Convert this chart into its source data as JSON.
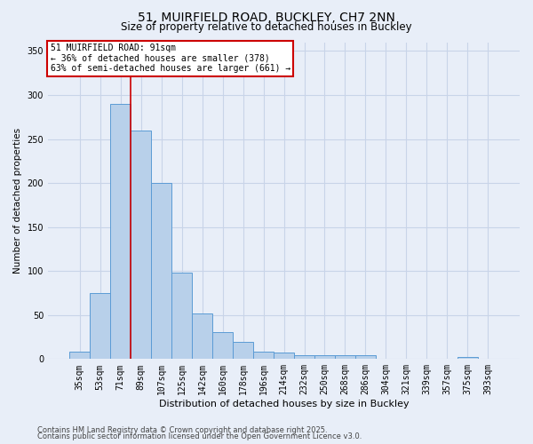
{
  "title1": "51, MUIRFIELD ROAD, BUCKLEY, CH7 2NN",
  "title2": "Size of property relative to detached houses in Buckley",
  "xlabel": "Distribution of detached houses by size in Buckley",
  "ylabel": "Number of detached properties",
  "categories": [
    "35sqm",
    "53sqm",
    "71sqm",
    "89sqm",
    "107sqm",
    "125sqm",
    "142sqm",
    "160sqm",
    "178sqm",
    "196sqm",
    "214sqm",
    "232sqm",
    "250sqm",
    "268sqm",
    "286sqm",
    "304sqm",
    "321sqm",
    "339sqm",
    "357sqm",
    "375sqm",
    "393sqm"
  ],
  "values": [
    8,
    75,
    290,
    260,
    200,
    98,
    52,
    31,
    20,
    8,
    7,
    4,
    4,
    4,
    4,
    0,
    0,
    0,
    0,
    2,
    0
  ],
  "bar_color": "#b8d0ea",
  "bar_edgecolor": "#5b9bd5",
  "bar_linewidth": 0.7,
  "vline_color": "#cc0000",
  "vline_x_index": 3,
  "annotation_text": "51 MUIRFIELD ROAD: 91sqm\n← 36% of detached houses are smaller (378)\n63% of semi-detached houses are larger (661) →",
  "annotation_box_facecolor": "#ffffff",
  "annotation_box_edgecolor": "#cc0000",
  "ylim": [
    0,
    360
  ],
  "yticks": [
    0,
    50,
    100,
    150,
    200,
    250,
    300,
    350
  ],
  "footer1": "Contains HM Land Registry data © Crown copyright and database right 2025.",
  "footer2": "Contains public sector information licensed under the Open Government Licence v3.0.",
  "bg_color": "#e8eef8",
  "grid_color": "#c8d4e8",
  "title1_fontsize": 10,
  "title2_fontsize": 8.5,
  "xlabel_fontsize": 8,
  "ylabel_fontsize": 7.5,
  "tick_fontsize": 7,
  "annot_fontsize": 7,
  "footer_fontsize": 6
}
